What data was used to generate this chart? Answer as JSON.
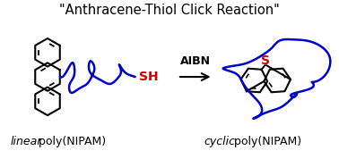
{
  "title": "\"Anthracene-Thiol Click Reaction\"",
  "title_fontsize": 10.5,
  "label_left_italic": "linear",
  "label_left_normal": " poly(NIPAM)",
  "label_right_italic": "cyclic",
  "label_right_normal": " poly(NIPAM)",
  "arrow_label": "AIBN",
  "sh_label": "SH",
  "s_label": "S",
  "black": "#000000",
  "blue": "#0000CC",
  "red": "#CC0000",
  "bg": "#ffffff",
  "figsize": [
    3.78,
    1.78
  ],
  "dpi": 100
}
